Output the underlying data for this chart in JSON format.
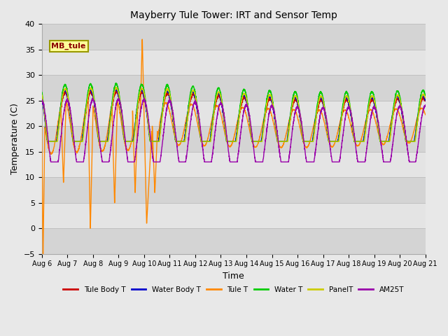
{
  "title": "Mayberry Tule Tower: IRT and Sensor Temp",
  "xlabel": "Time",
  "ylabel": "Temperature (C)",
  "ylim": [
    -5,
    40
  ],
  "tick_labels": [
    "Aug 6",
    "Aug 7",
    "Aug 8",
    "Aug 9",
    "Aug 10",
    "Aug 11",
    "Aug 12",
    "Aug 13",
    "Aug 14",
    "Aug 15",
    "Aug 16",
    "Aug 17",
    "Aug 18",
    "Aug 19",
    "Aug 20",
    "Aug 21"
  ],
  "legend_labels": [
    "Tule Body T",
    "Water Body T",
    "Tule T",
    "Water T",
    "PanelT",
    "AM25T"
  ],
  "legend_colors": [
    "#cc0000",
    "#0000cc",
    "#ff8800",
    "#00cc00",
    "#cccc00",
    "#9900aa"
  ],
  "annotation_text": "MB_tule",
  "bg_color": "#e8e8e8",
  "band_colors": [
    "#d8d8d8",
    "#e8e8e8"
  ],
  "yticks": [
    -5,
    0,
    5,
    10,
    15,
    20,
    25,
    30,
    35,
    40
  ]
}
